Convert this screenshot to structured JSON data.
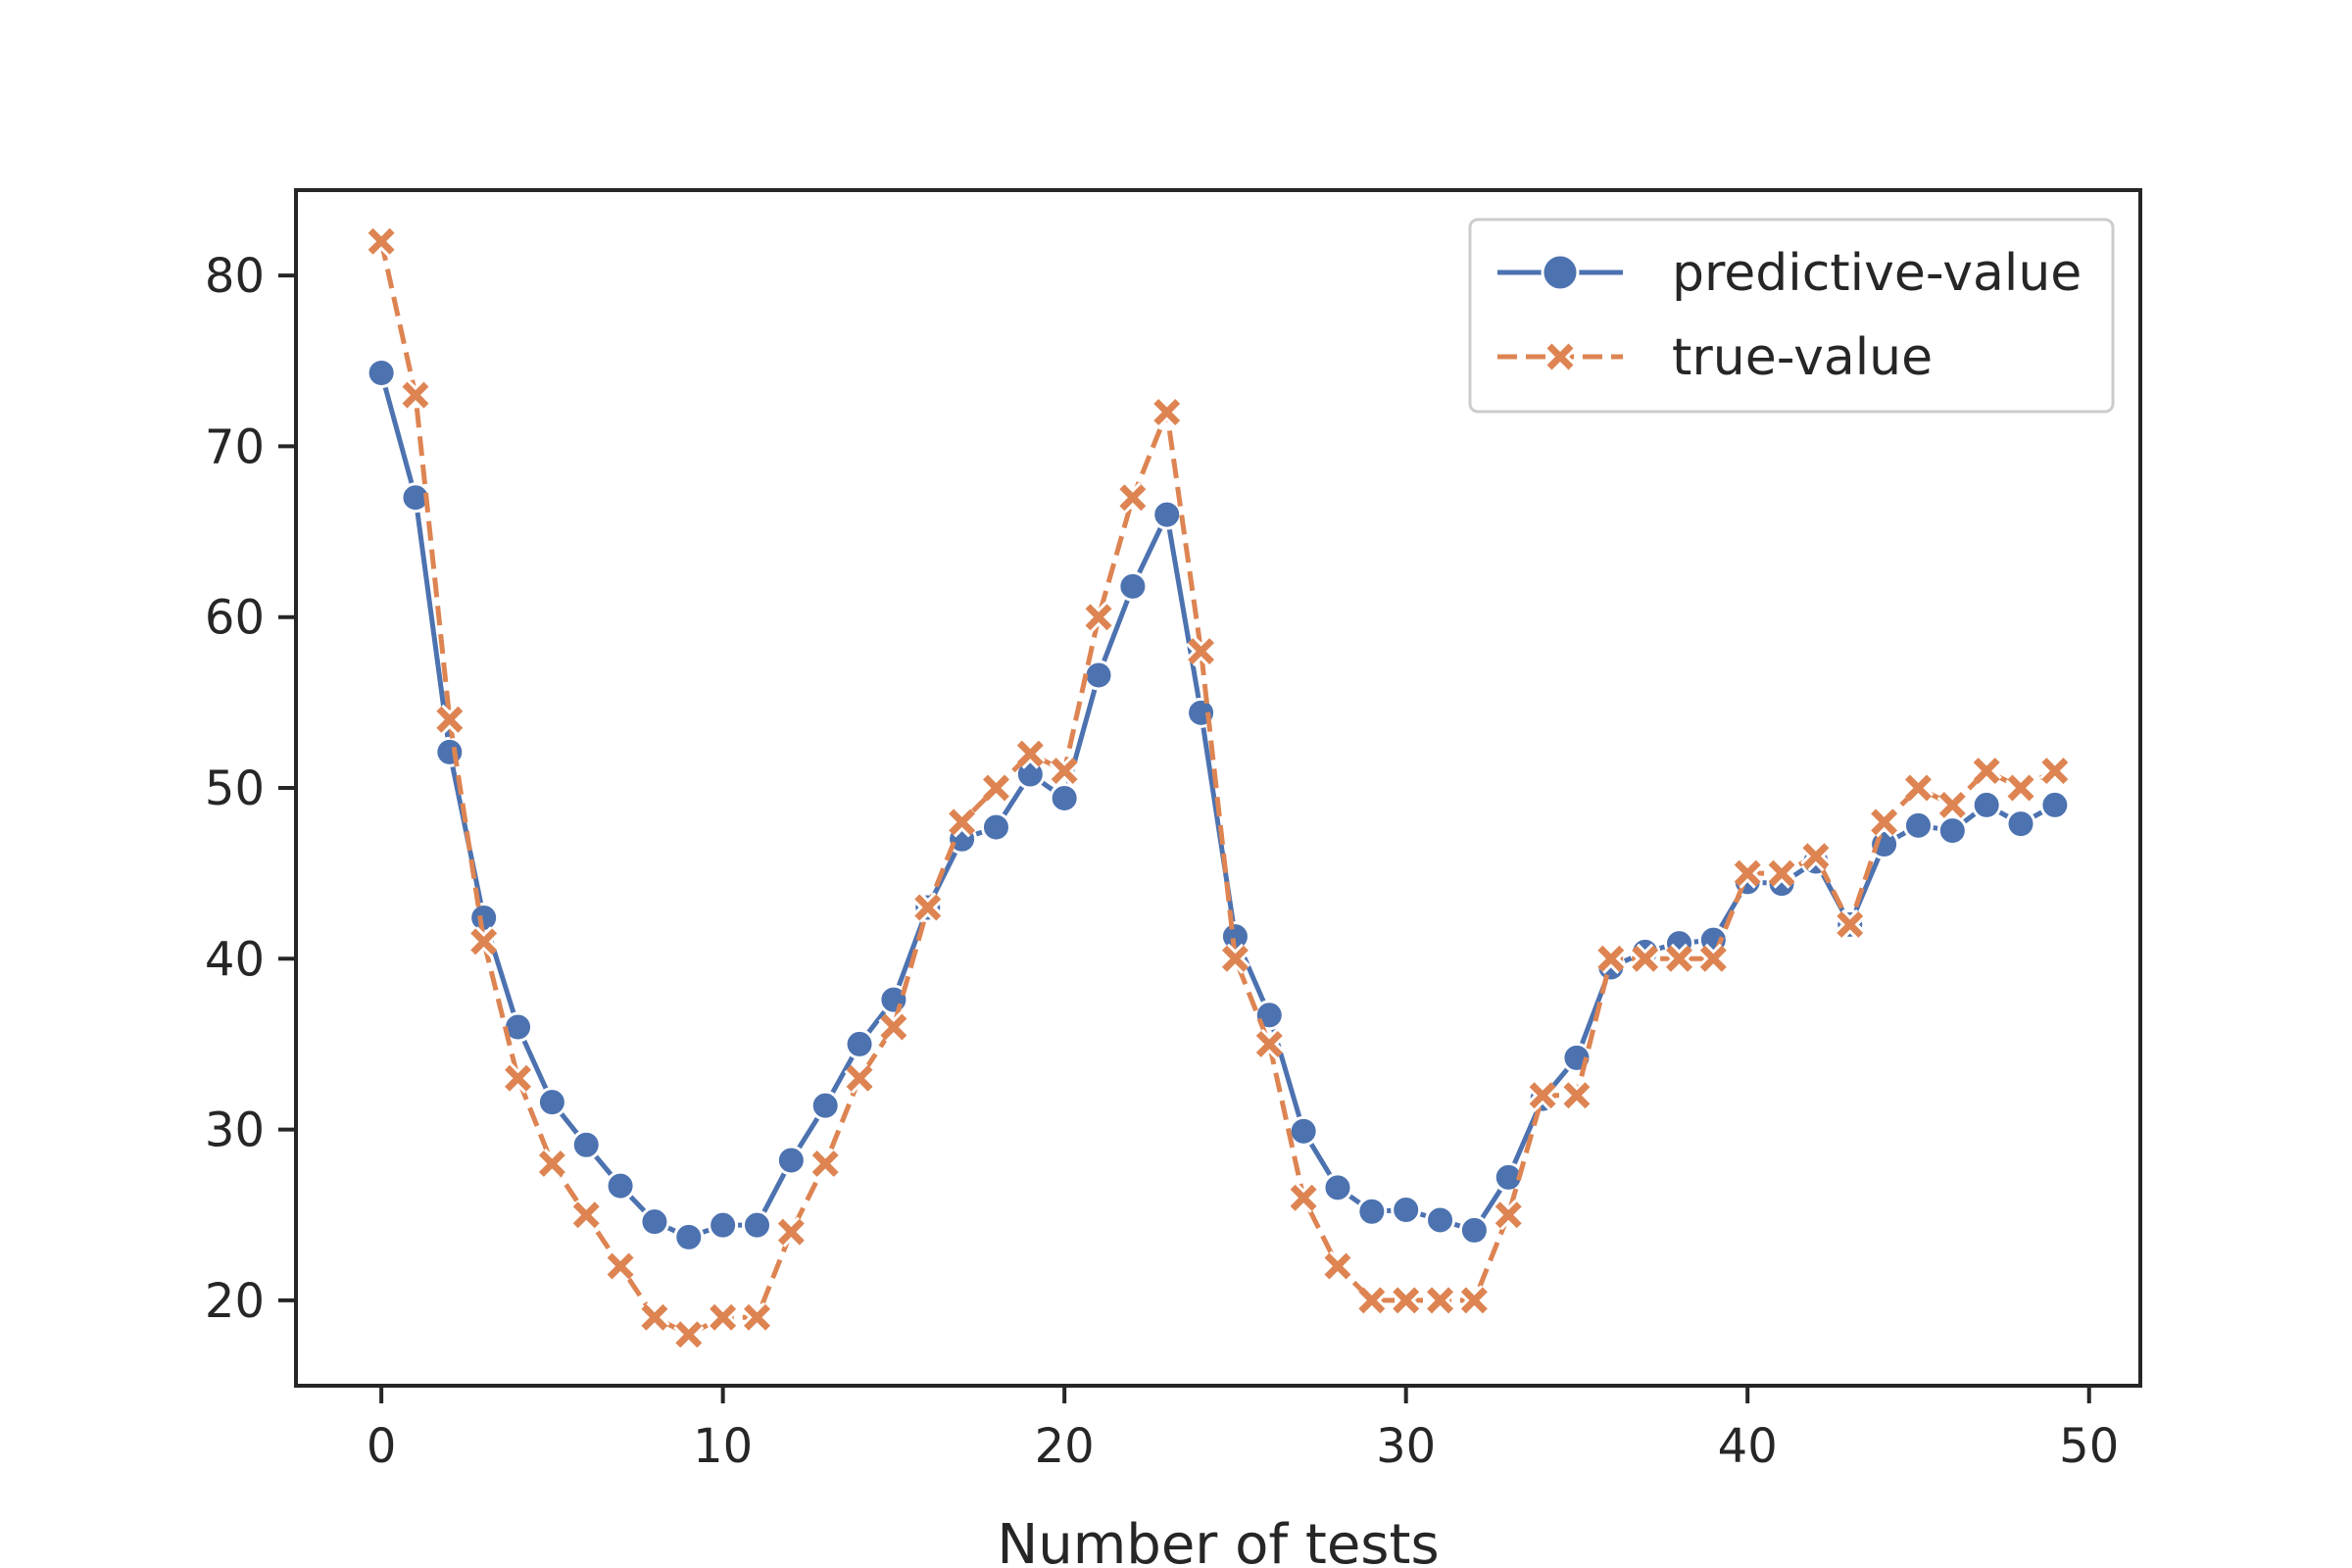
{
  "chart_data": {
    "type": "line",
    "title": "",
    "xlabel": "Number of tests",
    "ylabel": "",
    "xlim": [
      -2.5,
      51.5
    ],
    "ylim": [
      15,
      85
    ],
    "xticks": [
      0,
      10,
      20,
      30,
      40,
      50
    ],
    "yticks": [
      20,
      30,
      40,
      50,
      60,
      70,
      80
    ],
    "grid": false,
    "legend_position": "top-right",
    "x": [
      0,
      1,
      2,
      3,
      4,
      5,
      6,
      7,
      8,
      9,
      10,
      11,
      12,
      13,
      14,
      15,
      16,
      17,
      18,
      19,
      20,
      21,
      22,
      23,
      24,
      25,
      26,
      27,
      28,
      29,
      30,
      31,
      32,
      33,
      34,
      35,
      36,
      37,
      38,
      39,
      40,
      41,
      42,
      43,
      44,
      45,
      46,
      47,
      48,
      49
    ],
    "series": [
      {
        "name": "predictive-value",
        "color": "#4c72b0",
        "line_style": "solid",
        "marker": "circle",
        "values": [
          74.3,
          67.0,
          52.1,
          42.4,
          36.0,
          31.6,
          29.1,
          26.7,
          24.6,
          23.7,
          24.4,
          24.4,
          28.2,
          31.4,
          35.0,
          37.6,
          43.0,
          47.0,
          47.7,
          50.8,
          49.4,
          56.6,
          61.8,
          66.0,
          54.4,
          41.3,
          36.7,
          29.9,
          26.6,
          25.2,
          25.3,
          24.7,
          24.1,
          27.2,
          31.8,
          34.2,
          39.5,
          40.4,
          40.9,
          41.1,
          44.5,
          44.4,
          45.7,
          42.0,
          46.7,
          47.8,
          47.5,
          49.0,
          47.9,
          49.0
        ]
      },
      {
        "name": "true-value",
        "color": "#dd8452",
        "line_style": "dashed",
        "marker": "x",
        "values": [
          82,
          73,
          54,
          41,
          33,
          28,
          25,
          22,
          19,
          18,
          19,
          19,
          24,
          28,
          33,
          36,
          43,
          48,
          50,
          52,
          51,
          60,
          67,
          72,
          58,
          40,
          35,
          26,
          22,
          20,
          20,
          20,
          20,
          25,
          32,
          32,
          40,
          40,
          40,
          40,
          45,
          45,
          46,
          42,
          48,
          50,
          49,
          51,
          50,
          51
        ]
      }
    ]
  }
}
